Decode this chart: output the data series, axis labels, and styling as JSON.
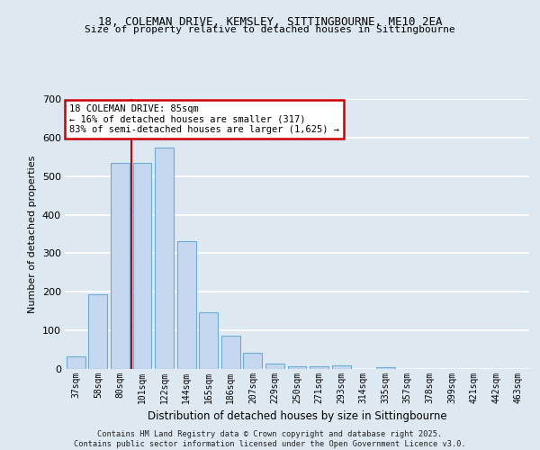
{
  "title1": "18, COLEMAN DRIVE, KEMSLEY, SITTINGBOURNE, ME10 2EA",
  "title2": "Size of property relative to detached houses in Sittingbourne",
  "xlabel": "Distribution of detached houses by size in Sittingbourne",
  "ylabel": "Number of detached properties",
  "categories": [
    "37sqm",
    "58sqm",
    "80sqm",
    "101sqm",
    "122sqm",
    "144sqm",
    "165sqm",
    "186sqm",
    "207sqm",
    "229sqm",
    "250sqm",
    "271sqm",
    "293sqm",
    "314sqm",
    "335sqm",
    "357sqm",
    "378sqm",
    "399sqm",
    "421sqm",
    "442sqm",
    "463sqm"
  ],
  "values": [
    32,
    193,
    535,
    535,
    575,
    332,
    148,
    87,
    42,
    13,
    8,
    7,
    10,
    0,
    5,
    0,
    0,
    0,
    0,
    0,
    0
  ],
  "bar_color": "#c5d8ef",
  "bar_edge_color": "#6aaed6",
  "vline_x_index": 2,
  "vline_color": "#cc0000",
  "annotation_title": "18 COLEMAN DRIVE: 85sqm",
  "annotation_line1": "← 16% of detached houses are smaller (317)",
  "annotation_line2": "83% of semi-detached houses are larger (1,625) →",
  "annotation_box_edgecolor": "#cc0000",
  "ylim": [
    0,
    700
  ],
  "yticks": [
    0,
    100,
    200,
    300,
    400,
    500,
    600,
    700
  ],
  "fig_bg": "#dde8f0",
  "ax_bg": "#dde8f0",
  "grid_color": "#ffffff",
  "footer1": "Contains HM Land Registry data © Crown copyright and database right 2025.",
  "footer2": "Contains public sector information licensed under the Open Government Licence v3.0."
}
